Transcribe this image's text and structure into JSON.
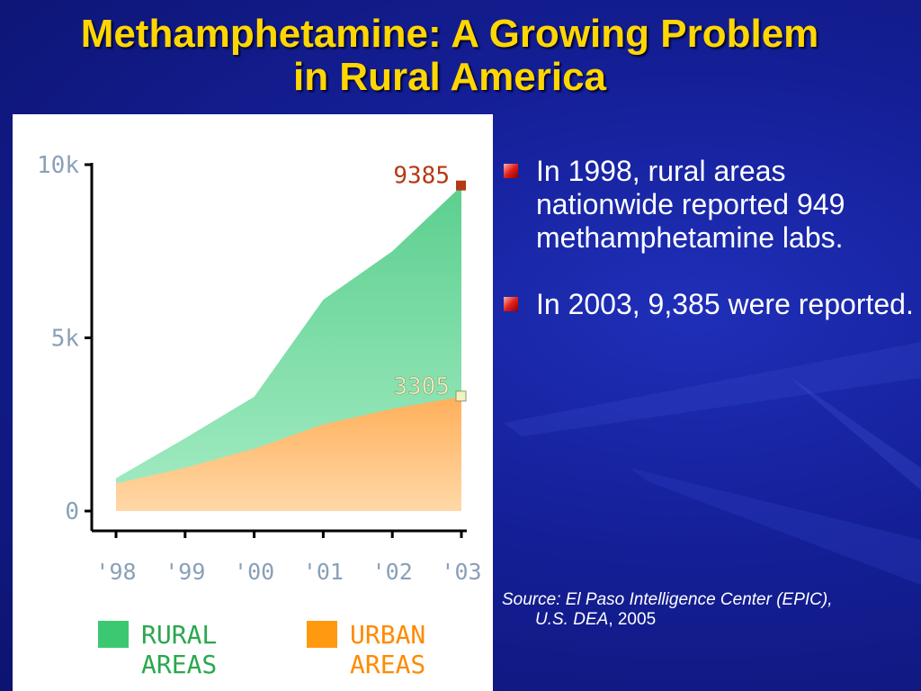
{
  "slide": {
    "title_line1": "Methamphetamine: A Growing Problem",
    "title_line2": "in Rural America",
    "bullets": [
      "In 1998, rural areas nationwide reported 949 methamphetamine labs.",
      "In 2003, 9,385 were reported."
    ],
    "source_italic_1": "Source: El Paso Intelligence Center (EPIC),",
    "source_italic_2": "U.S. DEA",
    "source_plain": ", 2005"
  },
  "colors": {
    "title": "#ffd700",
    "rural": "#3cc870",
    "urban": "#ff9a10",
    "rural_label": "#b53a14",
    "urban_label": "#f2f2c0",
    "bullet_text": "#ffffff"
  },
  "chart_data": {
    "type": "area",
    "stacked": false,
    "x": [
      "'98",
      "'99",
      "'00",
      "'01",
      "'02",
      "'03"
    ],
    "y_ticks": [
      "10k",
      "5k",
      "0"
    ],
    "y_tick_values": [
      10000,
      5000,
      0
    ],
    "ylim": [
      0,
      10000
    ],
    "series": [
      {
        "name": "RURAL AREAS",
        "legend_lines": [
          "RURAL",
          "AREAS"
        ],
        "color": "#3cc870",
        "values": [
          949,
          2100,
          3300,
          6100,
          7500,
          9385
        ],
        "end_label": "9385"
      },
      {
        "name": "URBAN AREAS",
        "legend_lines": [
          "URBAN",
          "AREAS"
        ],
        "color": "#ff9a10",
        "values": [
          800,
          1250,
          1800,
          2500,
          2950,
          3305
        ],
        "end_label": "3305"
      }
    ],
    "legend_position": "bottom"
  }
}
